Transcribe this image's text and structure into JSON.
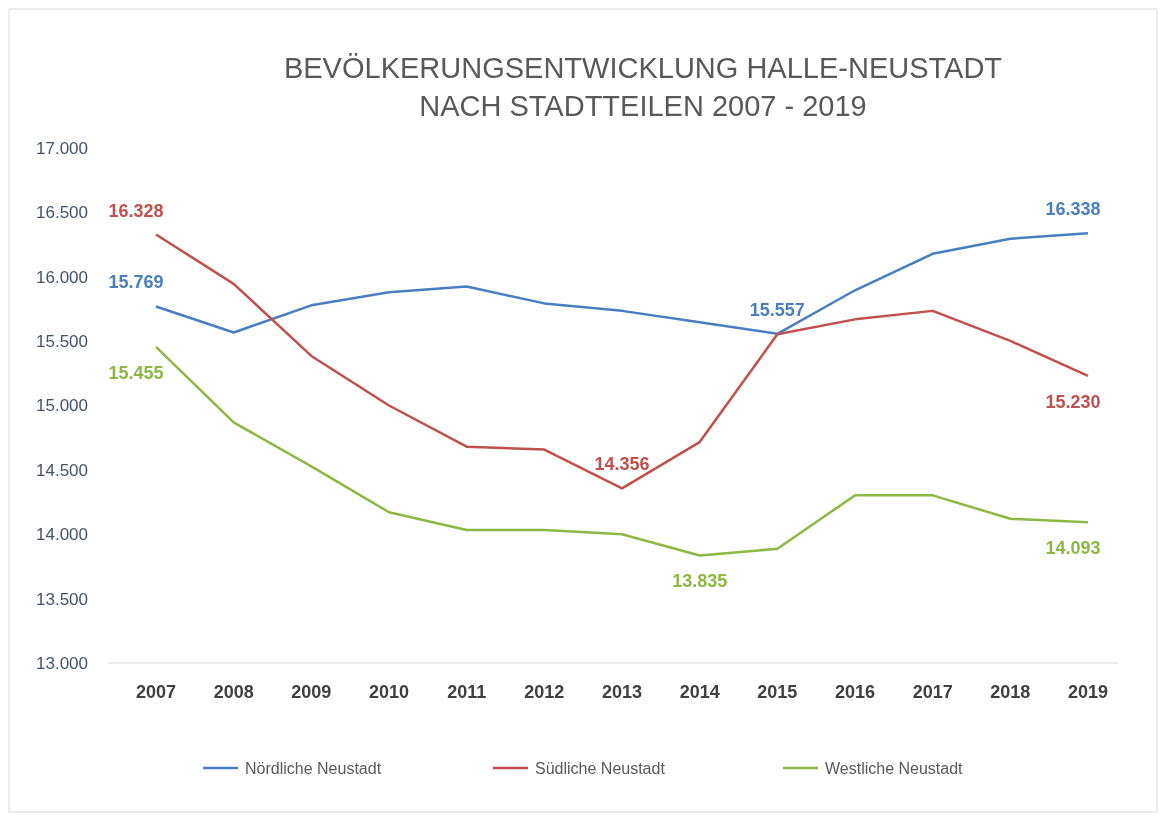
{
  "chart_data": {
    "type": "line",
    "title": "BEVÖLKERUNGSENTWICKLUNG  HALLE-NEUSTADT\nNACH STADTTEILEN 2007 - 2019",
    "categories": [
      "2007",
      "2008",
      "2009",
      "2010",
      "2011",
      "2012",
      "2013",
      "2014",
      "2015",
      "2016",
      "2017",
      "2018",
      "2019"
    ],
    "ylim": [
      13000,
      17000
    ],
    "yticks": [
      {
        "value": 13000,
        "label": "13.000"
      },
      {
        "value": 13500,
        "label": "13.500"
      },
      {
        "value": 14000,
        "label": "14.000"
      },
      {
        "value": 14500,
        "label": "14.500"
      },
      {
        "value": 15000,
        "label": "15.000"
      },
      {
        "value": 15500,
        "label": "15.500"
      },
      {
        "value": 16000,
        "label": "16.000"
      },
      {
        "value": 16500,
        "label": "16.500"
      },
      {
        "value": 17000,
        "label": "17.000"
      }
    ],
    "grid": false,
    "legend": "bottom",
    "marker": "none",
    "line_style": "solid",
    "series": [
      {
        "name": "Nördliche Neustadt",
        "color": "#4a7ebf",
        "values": [
          15769,
          15567,
          15778,
          15880,
          15924,
          15793,
          15735,
          15647,
          15557,
          15895,
          16178,
          16295,
          16338
        ],
        "value_labels": [
          "15.769",
          null,
          null,
          null,
          null,
          null,
          null,
          null,
          "15.557",
          null,
          null,
          null,
          "16.338"
        ]
      },
      {
        "name": "Südliche Neustadt",
        "color": "#c0504d",
        "values": [
          16328,
          15945,
          15385,
          15000,
          14680,
          14658,
          14356,
          14716,
          15553,
          15669,
          15735,
          15502,
          15230
        ],
        "value_labels": [
          "16.328",
          null,
          null,
          null,
          null,
          null,
          "14.356",
          null,
          null,
          null,
          null,
          null,
          "15.230"
        ]
      },
      {
        "name": "Westliche Neustadt",
        "color": "#8db843",
        "values": [
          15455,
          14869,
          14527,
          14171,
          14033,
          14033,
          14000,
          13835,
          13887,
          14302,
          14302,
          14120,
          14093
        ],
        "value_labels": [
          "15.455",
          null,
          null,
          null,
          null,
          null,
          null,
          "13.835",
          null,
          null,
          null,
          null,
          "14.093"
        ]
      }
    ]
  }
}
